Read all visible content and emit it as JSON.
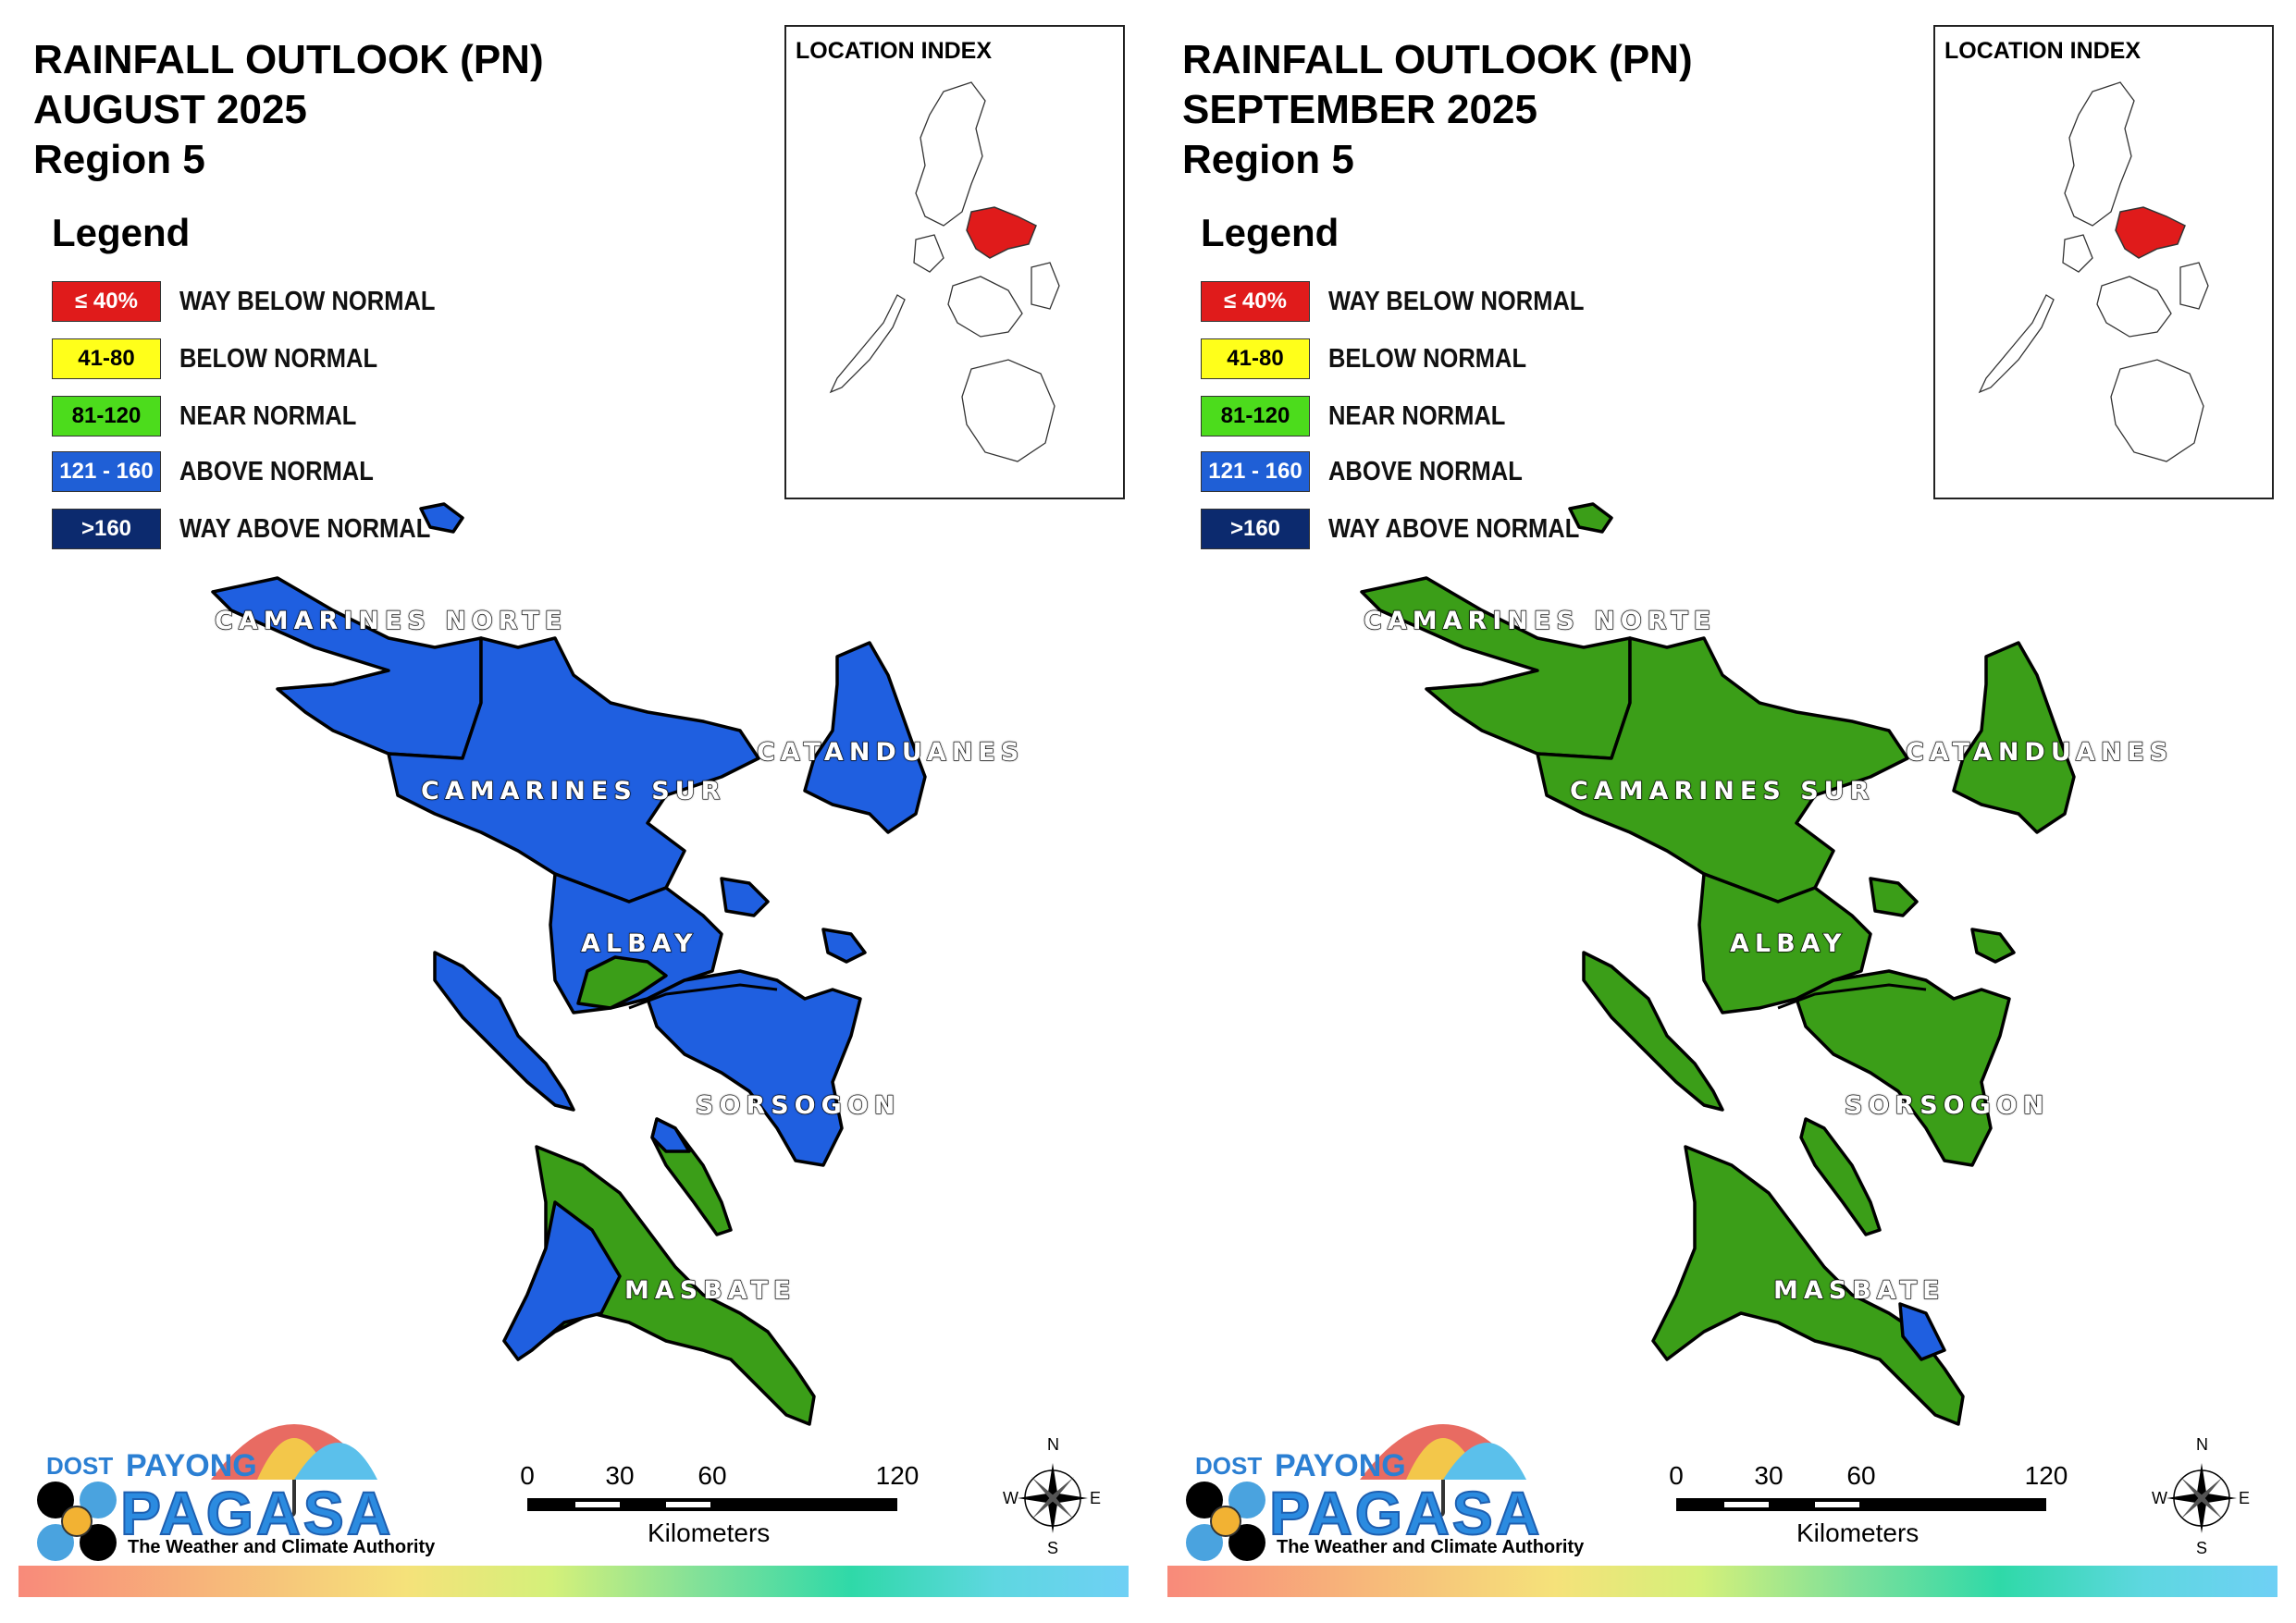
{
  "panels": [
    {
      "id": "august",
      "title_line1": "RAINFALL OUTLOOK (PN)",
      "title_line2": "AUGUST 2025",
      "title_line3": "Region 5",
      "provinces": {
        "camarines_norte": {
          "label": "CAMARINES NORTE",
          "category": "above-normal"
        },
        "camarines_sur": {
          "label": "CAMARINES SUR",
          "category": "above-normal"
        },
        "catanduanes": {
          "label": "CATANDUANES",
          "category": "above-normal"
        },
        "albay": {
          "label": "ALBAY",
          "category": "above-normal",
          "partial": "near-normal"
        },
        "sorsogon": {
          "label": "SORSOGON",
          "category": "above-normal"
        },
        "masbate": {
          "label": "MASBATE",
          "category": "near-normal",
          "partial": "above-normal"
        }
      }
    },
    {
      "id": "september",
      "title_line1": "RAINFALL OUTLOOK (PN)",
      "title_line2": "SEPTEMBER 2025",
      "title_line3": "Region 5",
      "provinces": {
        "camarines_norte": {
          "label": "CAMARINES NORTE",
          "category": "near-normal"
        },
        "camarines_sur": {
          "label": "CAMARINES SUR",
          "category": "near-normal"
        },
        "catanduanes": {
          "label": "CATANDUANES",
          "category": "near-normal"
        },
        "albay": {
          "label": "ALBAY",
          "category": "near-normal"
        },
        "sorsogon": {
          "label": "SORSOGON",
          "category": "near-normal"
        },
        "masbate": {
          "label": "MASBATE",
          "category": "near-normal",
          "partial": "above-normal"
        }
      }
    }
  ],
  "legend": {
    "title": "Legend",
    "items": [
      {
        "range": "≤ 40%",
        "label": "WAY BELOW NORMAL",
        "color": "#e01b1b",
        "text_color": "#ffffff"
      },
      {
        "range": "41-80",
        "label": "BELOW NORMAL",
        "color": "#ffff1a",
        "text_color": "#000000"
      },
      {
        "range": "81-120",
        "label": "NEAR NORMAL",
        "color": "#4cdc1c",
        "text_color": "#000000"
      },
      {
        "range": "121 - 160",
        "label": "ABOVE NORMAL",
        "color": "#1f5fd6",
        "text_color": "#ffffff"
      },
      {
        "range": ">160",
        "label": "WAY ABOVE NORMAL",
        "color": "#0c2a6e",
        "text_color": "#ffffff"
      }
    ]
  },
  "map_colors": {
    "above_normal": "#1f5fe0",
    "near_normal": "#3b9e18",
    "index_highlight": "#e01b1b"
  },
  "inset": {
    "title": "LOCATION INDEX"
  },
  "scale": {
    "ticks": [
      "0",
      "30",
      "60",
      "120"
    ],
    "unit": "Kilometers"
  },
  "compass": {
    "n": "N",
    "s": "S",
    "e": "E",
    "w": "W"
  },
  "logo": {
    "agency": "DOST",
    "brand_top": "PAYONG",
    "brand_main": "PAGASA",
    "tagline": "The Weather and Climate Authority"
  }
}
